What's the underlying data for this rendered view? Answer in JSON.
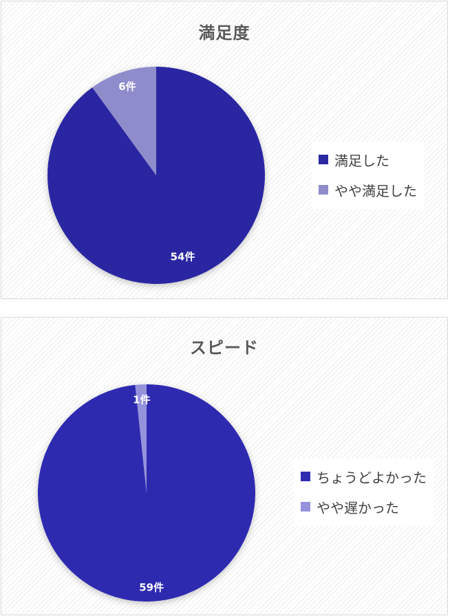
{
  "chart_data": [
    {
      "type": "pie",
      "title": "満足度",
      "slices": [
        {
          "label": "満足した",
          "value": 54,
          "data_label": "54件",
          "color": "#2b28a2"
        },
        {
          "label": "やや満足した",
          "value": 6,
          "data_label": "6件",
          "color": "#8f8ccc"
        }
      ],
      "legend_position": "right"
    },
    {
      "type": "pie",
      "title": "スピード",
      "slices": [
        {
          "label": "ちょうどよかった",
          "value": 59,
          "data_label": "59件",
          "color": "#2f2cb0"
        },
        {
          "label": "やや遅かった",
          "value": 1,
          "data_label": "1件",
          "color": "#9592dc"
        }
      ],
      "legend_position": "right"
    }
  ]
}
